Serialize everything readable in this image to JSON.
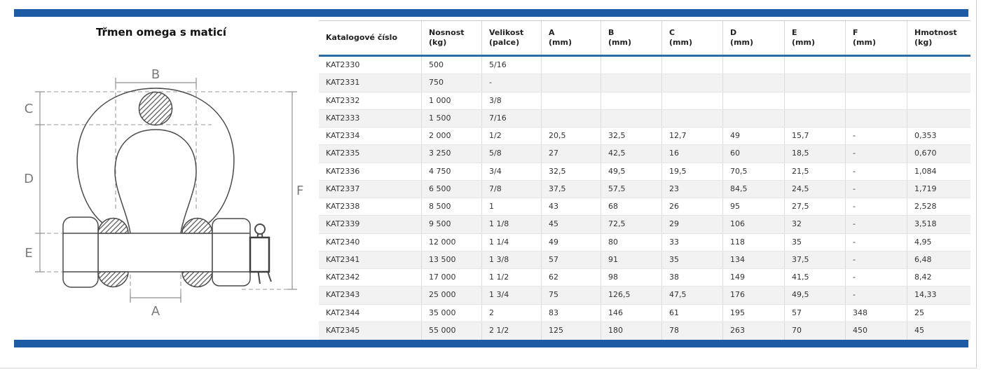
{
  "page": {
    "title": "Třmen omega s maticí"
  },
  "colors": {
    "accent_blue_bar": "#1d5ca5",
    "header_rule_blue": "#2e6da4",
    "row_alt_gray": "#f2f2f2"
  },
  "diagram": {
    "description": "technical drawing of omega bow shackle with safety bolt, nut and cotter pin",
    "labels": {
      "a": "A",
      "b": "B",
      "c": "C",
      "d": "D",
      "e": "E",
      "f": "F"
    }
  },
  "table": {
    "columns": [
      {
        "label": "Katalogové číslo",
        "unit": ""
      },
      {
        "label": "Nosnost",
        "unit": "(kg)"
      },
      {
        "label": "Velikost",
        "unit": "(palce)"
      },
      {
        "label": "A",
        "unit": "(mm)"
      },
      {
        "label": "B",
        "unit": "(mm)"
      },
      {
        "label": "C",
        "unit": "(mm)"
      },
      {
        "label": "D",
        "unit": "(mm)"
      },
      {
        "label": "E",
        "unit": "(mm)"
      },
      {
        "label": "F",
        "unit": "(mm)"
      },
      {
        "label": "Hmotnost",
        "unit": "(kg)"
      }
    ],
    "rows": [
      [
        "KAT2330",
        "500",
        "5/16",
        "",
        "",
        "",
        "",
        "",
        "",
        ""
      ],
      [
        "KAT2331",
        "750",
        "-",
        "",
        "",
        "",
        "",
        "",
        "",
        ""
      ],
      [
        "KAT2332",
        "1 000",
        "3/8",
        "",
        "",
        "",
        "",
        "",
        "",
        ""
      ],
      [
        "KAT2333",
        "1 500",
        "7/16",
        "",
        "",
        "",
        "",
        "",
        "",
        ""
      ],
      [
        "KAT2334",
        "2 000",
        "1/2",
        "20,5",
        "32,5",
        "12,7",
        "49",
        "15,7",
        "-",
        "0,353"
      ],
      [
        "KAT2335",
        "3 250",
        "5/8",
        "27",
        "42,5",
        "16",
        "60",
        "18,5",
        "-",
        "0,670"
      ],
      [
        "KAT2336",
        "4 750",
        "3/4",
        "32,5",
        "49,5",
        "19,5",
        "70,5",
        "21,5",
        "-",
        "1,084"
      ],
      [
        "KAT2337",
        "6 500",
        "7/8",
        "37,5",
        "57,5",
        "23",
        "84,5",
        "24,5",
        "-",
        "1,719"
      ],
      [
        "KAT2338",
        "8 500",
        "1",
        "43",
        "68",
        "26",
        "95",
        "27,5",
        "-",
        "2,528"
      ],
      [
        "KAT2339",
        "9 500",
        "1 1/8",
        "45",
        "72,5",
        "29",
        "106",
        "32",
        "-",
        "3,518"
      ],
      [
        "KAT2340",
        "12 000",
        "1 1/4",
        "49",
        "80",
        "33",
        "118",
        "35",
        "-",
        "4,95"
      ],
      [
        "KAT2341",
        "13 500",
        "1 3/8",
        "57",
        "91",
        "35",
        "134",
        "37,5",
        "-",
        "6,48"
      ],
      [
        "KAT2342",
        "17 000",
        "1 1/2",
        "62",
        "98",
        "38",
        "149",
        "41,5",
        "-",
        "8,42"
      ],
      [
        "KAT2343",
        "25 000",
        "1 3/4",
        "75",
        "126,5",
        "47,5",
        "176",
        "49,5",
        "-",
        "14,33"
      ],
      [
        "KAT2344",
        "35 000",
        "2",
        "83",
        "146",
        "61",
        "195",
        "57",
        "348",
        "25"
      ],
      [
        "KAT2345",
        "55 000",
        "2 1/2",
        "125",
        "180",
        "78",
        "263",
        "70",
        "450",
        "45"
      ]
    ]
  }
}
